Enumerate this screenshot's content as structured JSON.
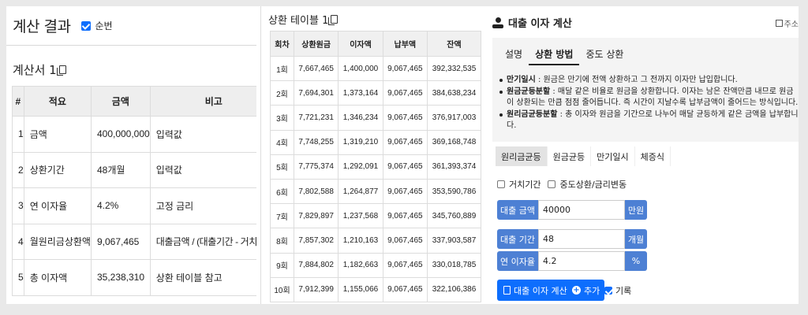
{
  "result": {
    "title": "계산 결과",
    "checkbox_label": "순번",
    "statement_title": "계산서 1",
    "table": {
      "headers": [
        "#",
        "적요",
        "금액",
        "비고"
      ],
      "rows": [
        [
          "1",
          "금액",
          "400,000,000",
          "입력값"
        ],
        [
          "2",
          "상환기간",
          "48개월",
          "입력값"
        ],
        [
          "3",
          "연 이자율",
          "4.2%",
          "고정 금리"
        ],
        [
          "4",
          "월원리금상환액",
          "9,067,465",
          "대출금액 / (대출기간 - 거치기간)"
        ],
        [
          "5",
          "총 이자액",
          "35,238,310",
          "상환 테이블 참고"
        ]
      ]
    }
  },
  "repayment": {
    "title": "상환 테이블 1",
    "headers": [
      "회차",
      "상환원금",
      "이자액",
      "납부액",
      "잔액"
    ],
    "rows": [
      [
        "1회",
        "7,667,465",
        "1,400,000",
        "9,067,465",
        "392,332,535"
      ],
      [
        "2회",
        "7,694,301",
        "1,373,164",
        "9,067,465",
        "384,638,234"
      ],
      [
        "3회",
        "7,721,231",
        "1,346,234",
        "9,067,465",
        "376,917,003"
      ],
      [
        "4회",
        "7,748,255",
        "1,319,210",
        "9,067,465",
        "369,168,748"
      ],
      [
        "5회",
        "7,775,374",
        "1,292,091",
        "9,067,465",
        "361,393,374"
      ],
      [
        "6회",
        "7,802,588",
        "1,264,877",
        "9,067,465",
        "353,590,786"
      ],
      [
        "7회",
        "7,829,897",
        "1,237,568",
        "9,067,465",
        "345,760,889"
      ],
      [
        "8회",
        "7,857,302",
        "1,210,163",
        "9,067,465",
        "337,903,587"
      ],
      [
        "9회",
        "7,884,802",
        "1,182,663",
        "9,067,465",
        "330,018,785"
      ],
      [
        "10회",
        "7,912,399",
        "1,155,066",
        "9,067,465",
        "322,106,386"
      ]
    ]
  },
  "calculator": {
    "title": "대출 이자 계산",
    "share_label": "주소",
    "tabs": [
      "설명",
      "상환 방법",
      "중도 상환"
    ],
    "descriptions": [
      {
        "term": "만기일시",
        "text": " : 원금은 만기에 전액 상환하고 그 전까지 이자만 납입합니다."
      },
      {
        "term": "원금균등분할",
        "text": " : 매달 같은 비율로 원금을 상환합니다. 이자는 남은 잔액만큼 내므로 원금이 상환되는 만큼 점점 줄어듭니다. 즉 시간이 지날수록 납부금액이 줄어드는 방식입니다."
      },
      {
        "term": "원리금균등분할",
        "text": " : 총 이자와 원금을 기간으로 나누어 매달 균등하게 같은 금액을 납부합니다."
      }
    ],
    "method_tabs": [
      "원리금균등",
      "원금균등",
      "만기일시",
      "체증식"
    ],
    "options": [
      "거치기간",
      "중도상환/금리변동"
    ],
    "fields": {
      "amount": {
        "label": "대출 금액",
        "value": "40000",
        "unit": "만원"
      },
      "period": {
        "label": "대출 기간",
        "value": "48",
        "unit": "개월"
      },
      "rate": {
        "label": "연 이자율",
        "value": "4.2",
        "unit": "%"
      }
    },
    "calc_button": "대출 이자 계산",
    "add_button": "추가",
    "record_label": "기록"
  }
}
